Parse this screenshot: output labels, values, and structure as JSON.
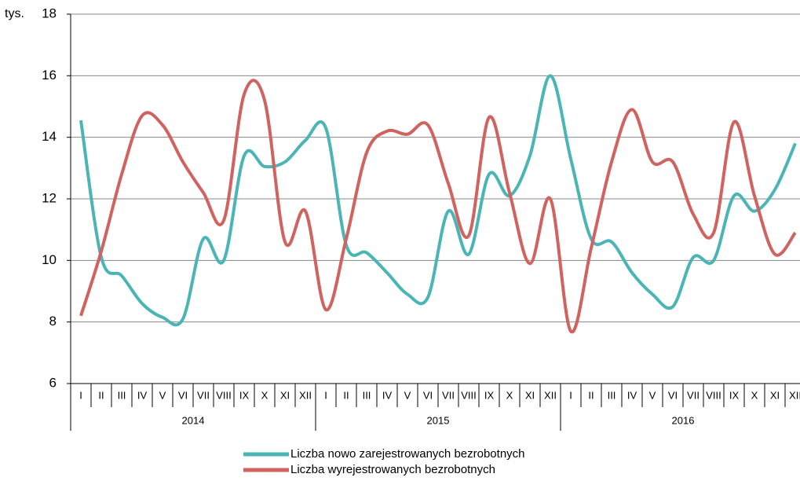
{
  "chart_data": {
    "type": "line",
    "y_label": "tys.",
    "categories": [
      "I",
      "II",
      "III",
      "IV",
      "V",
      "VI",
      "VII",
      "VIII",
      "IX",
      "X",
      "XI",
      "XII",
      "I",
      "II",
      "III",
      "IV",
      "V",
      "VI",
      "VII",
      "VIII",
      "IX",
      "X",
      "XI",
      "XII",
      "I",
      "II",
      "III",
      "IV",
      "V",
      "VI",
      "VII",
      "VIII",
      "IX",
      "X",
      "XI",
      "XII"
    ],
    "category_groups": [
      "2014",
      "2015",
      "2016"
    ],
    "series": [
      {
        "name": "Liczba nowo zarejestrowanych bezrobotnych",
        "color": "#4bb5b5",
        "values": [
          14.55,
          10.1,
          9.5,
          8.6,
          8.15,
          8.1,
          10.7,
          10.0,
          13.4,
          13.05,
          13.2,
          13.9,
          14.3,
          10.5,
          10.25,
          9.6,
          8.9,
          8.8,
          11.6,
          10.2,
          12.8,
          12.1,
          13.4,
          16.0,
          13.3,
          10.7,
          10.6,
          9.6,
          8.9,
          8.5,
          10.1,
          10.0,
          12.1,
          11.6,
          12.3,
          13.8
        ]
      },
      {
        "name": "Liczba wyrejestrowanych bezrobotnych",
        "color": "#d0625f",
        "values": [
          8.2,
          10.3,
          12.8,
          14.7,
          14.4,
          13.2,
          12.2,
          11.3,
          15.4,
          15.2,
          10.6,
          11.6,
          8.4,
          10.7,
          13.5,
          14.2,
          14.1,
          14.4,
          12.5,
          10.8,
          14.65,
          12.2,
          9.9,
          12.0,
          7.7,
          10.4,
          13.2,
          14.9,
          13.2,
          13.2,
          11.5,
          10.9,
          14.5,
          12.1,
          10.2,
          10.9
        ]
      }
    ],
    "ylim": [
      6,
      18
    ],
    "yticks": [
      6,
      8,
      10,
      12,
      14,
      16,
      18
    ],
    "grid": true,
    "legend": "bottom"
  }
}
